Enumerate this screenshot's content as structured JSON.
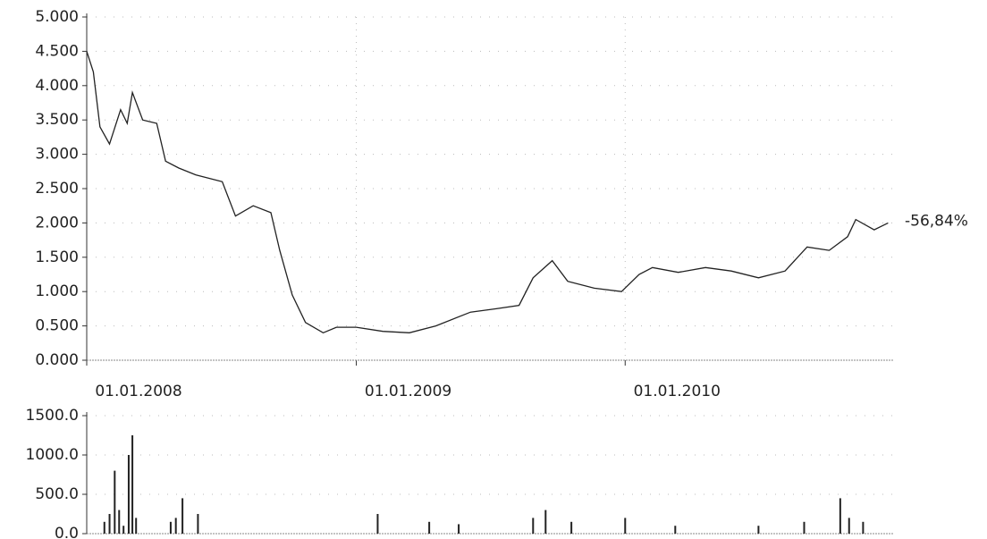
{
  "chart_data": [
    {
      "type": "line",
      "color": "#222222",
      "grid": true,
      "annotation": "-56,84%",
      "x": [
        "2008-01-01",
        "2008-01-10",
        "2008-01-19",
        "2008-02-01",
        "2008-02-16",
        "2008-02-25",
        "2008-03-03",
        "2008-03-17",
        "2008-04-05",
        "2008-04-17",
        "2008-05-05",
        "2008-05-28",
        "2008-07-03",
        "2008-07-21",
        "2008-08-14",
        "2008-09-07",
        "2008-09-19",
        "2008-10-06",
        "2008-10-24",
        "2008-11-17",
        "2008-12-05",
        "2009-01-01",
        "2009-02-06",
        "2009-03-14",
        "2009-04-19",
        "2009-06-05",
        "2009-07-10",
        "2009-08-10",
        "2009-08-29",
        "2009-09-24",
        "2009-10-15",
        "2009-11-20",
        "2009-12-27",
        "2010-01-20",
        "2010-02-07",
        "2010-03-14",
        "2010-04-20",
        "2010-05-25",
        "2010-07-01",
        "2010-08-06",
        "2010-09-05",
        "2010-10-05",
        "2010-10-30",
        "2010-11-10",
        "2010-12-05",
        "2010-12-24"
      ],
      "values": [
        4.5,
        4.2,
        3.4,
        3.15,
        3.65,
        3.45,
        3.9,
        3.5,
        3.45,
        2.9,
        2.8,
        2.7,
        2.6,
        2.1,
        2.25,
        2.15,
        1.6,
        0.95,
        0.55,
        0.4,
        0.48,
        0.48,
        0.42,
        0.4,
        0.5,
        0.7,
        0.75,
        0.8,
        1.2,
        1.45,
        1.15,
        1.05,
        1.0,
        1.25,
        1.35,
        1.28,
        1.35,
        1.3,
        1.2,
        1.3,
        1.65,
        1.6,
        1.8,
        2.05,
        1.9,
        2.0
      ],
      "xlim": [
        "2008-01-01",
        "2011-01-01"
      ],
      "xticks": [
        {
          "value": "2008-01-01",
          "label": "01.01.2008"
        },
        {
          "value": "2009-01-01",
          "label": "01.01.2009"
        },
        {
          "value": "2010-01-01",
          "label": "01.01.2010"
        }
      ],
      "ylim": [
        0,
        5
      ],
      "yticks": [
        {
          "value": 0,
          "label": "0.000"
        },
        {
          "value": 0.5,
          "label": "0.500"
        },
        {
          "value": 1,
          "label": "1.000"
        },
        {
          "value": 1.5,
          "label": "1.500"
        },
        {
          "value": 2,
          "label": "2.000"
        },
        {
          "value": 2.5,
          "label": "2.500"
        },
        {
          "value": 3,
          "label": "3.000"
        },
        {
          "value": 3.5,
          "label": "3.500"
        },
        {
          "value": 4,
          "label": "4.000"
        },
        {
          "value": 4.5,
          "label": "4.500"
        },
        {
          "value": 5,
          "label": "5.000"
        }
      ]
    },
    {
      "type": "bar",
      "color": "#222222",
      "grid": true,
      "x": [
        "2008-01-25",
        "2008-02-01",
        "2008-02-08",
        "2008-02-14",
        "2008-02-20",
        "2008-02-27",
        "2008-03-03",
        "2008-03-08",
        "2008-04-24",
        "2008-05-01",
        "2008-05-10",
        "2008-05-31",
        "2009-01-30",
        "2009-04-10",
        "2009-05-20",
        "2009-08-29",
        "2009-09-15",
        "2009-10-20",
        "2010-01-01",
        "2010-03-10",
        "2010-07-01",
        "2010-09-01",
        "2010-10-20",
        "2010-11-01",
        "2010-11-20"
      ],
      "values": [
        150,
        250,
        800,
        300,
        100,
        1000,
        1250,
        200,
        150,
        200,
        450,
        250,
        250,
        150,
        120,
        200,
        300,
        150,
        200,
        100,
        100,
        150,
        450,
        200,
        150
      ],
      "xlim": [
        "2008-01-01",
        "2011-01-01"
      ],
      "ylim": [
        0,
        1500
      ],
      "yticks": [
        {
          "value": 0,
          "label": "0.0"
        },
        {
          "value": 500,
          "label": "500.0"
        },
        {
          "value": 1000,
          "label": "1000.0"
        },
        {
          "value": 1500,
          "label": "1500.0"
        }
      ]
    }
  ]
}
